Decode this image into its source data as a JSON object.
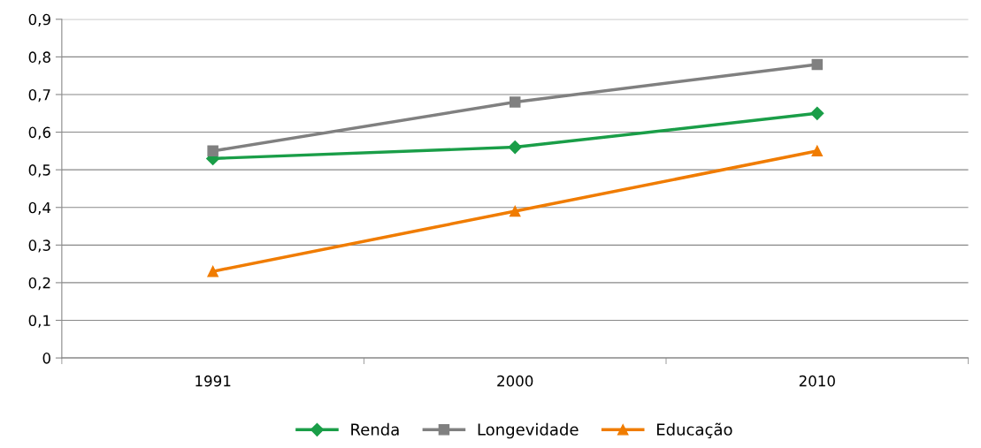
{
  "chart_data": {
    "type": "line",
    "categories": [
      "1991",
      "2000",
      "2010"
    ],
    "series": [
      {
        "name": "Renda",
        "color": "#1a9e48",
        "marker": "diamond",
        "values": [
          0.53,
          0.56,
          0.65
        ]
      },
      {
        "name": "Longevidade",
        "color": "#808080",
        "marker": "square",
        "values": [
          0.55,
          0.68,
          0.78
        ]
      },
      {
        "name": "Educação",
        "color": "#f07c00",
        "marker": "triangle",
        "values": [
          0.23,
          0.39,
          0.55
        ]
      }
    ],
    "ylim": [
      0,
      0.9
    ],
    "yticks": [
      0,
      {
        "value": 0.1,
        "label": "0,1"
      },
      {
        "value": 0.2,
        "label": "0,2"
      },
      {
        "value": 0.3,
        "label": "0,3"
      },
      {
        "value": 0.4,
        "label": "0,4"
      },
      {
        "value": 0.5,
        "label": "0,5"
      },
      {
        "value": 0.6,
        "label": "0,6"
      },
      {
        "value": 0.7,
        "label": "0,7"
      },
      {
        "value": 0.8,
        "label": "0,8"
      },
      {
        "value": 0.9,
        "label": "0,9"
      }
    ],
    "grid": "y",
    "legend": "bottom",
    "line_style": "solid"
  }
}
